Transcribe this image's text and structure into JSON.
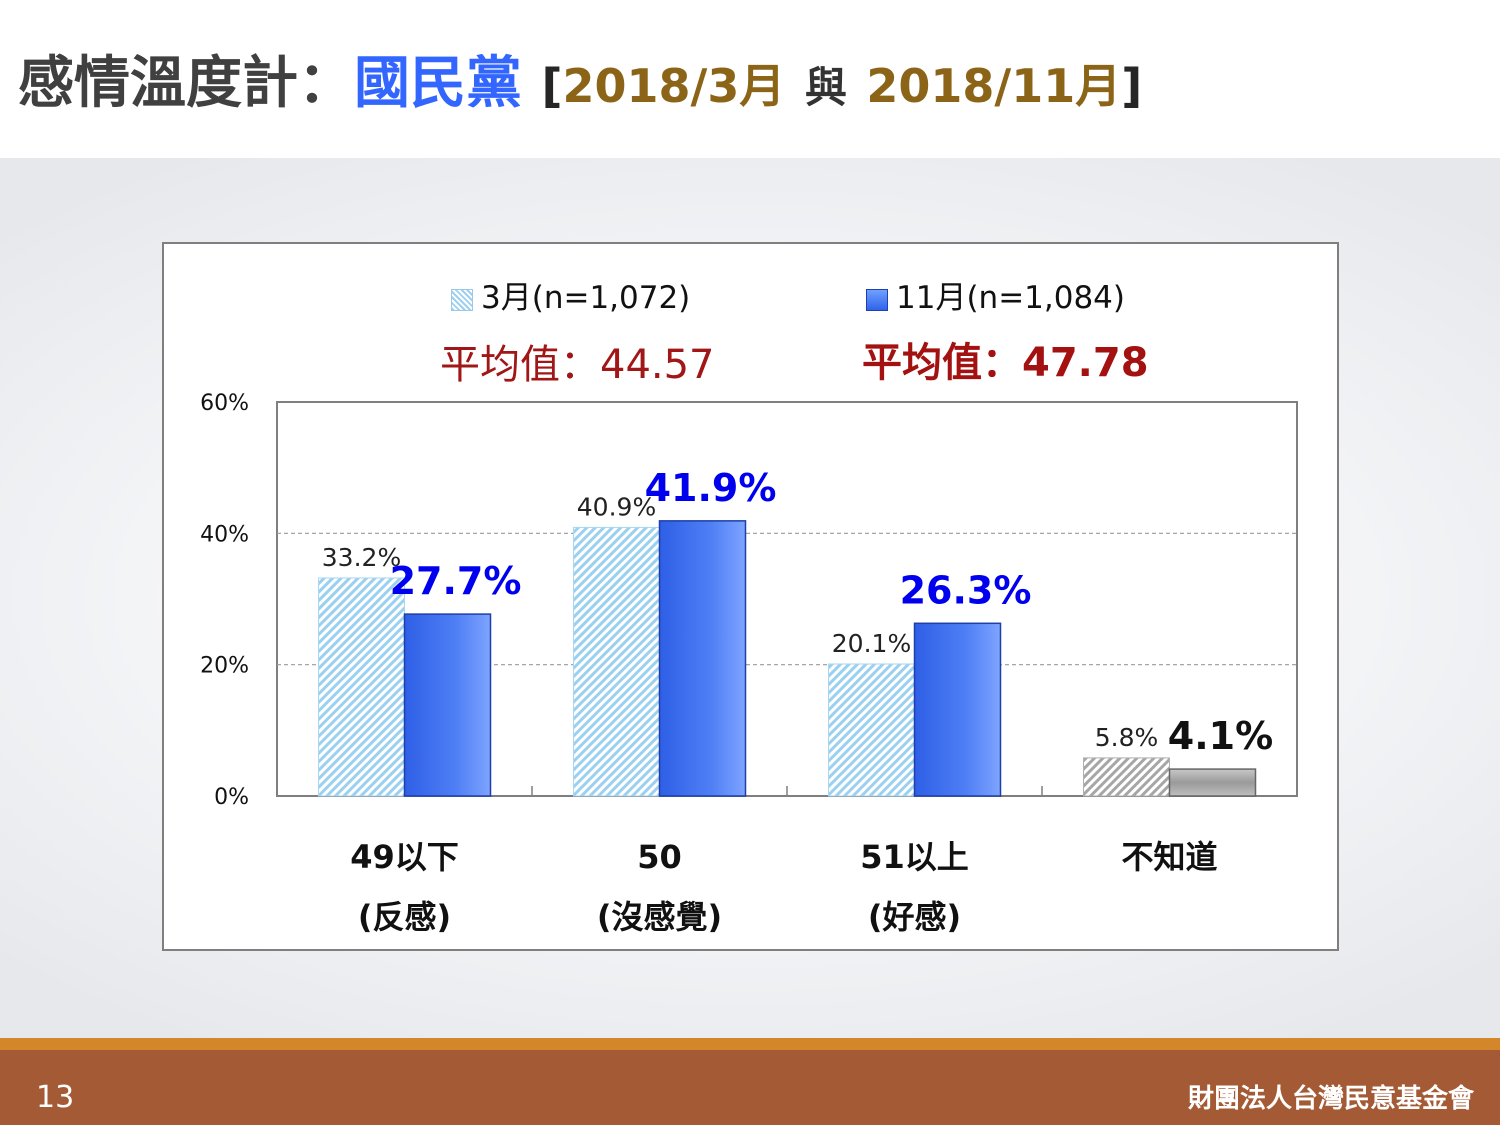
{
  "header": {
    "title_main": "感情溫度計：",
    "title_party": "國民黨",
    "title_open": "[",
    "title_date1": "2018/3月",
    "title_and": "與",
    "title_date2": "2018/11月",
    "title_close": "]"
  },
  "legend": {
    "march_label": "3月(n=1,072)",
    "nov_label": "11月(n=1,084)"
  },
  "averages": {
    "march": "平均值：44.57",
    "nov": "平均值：47.78"
  },
  "colors": {
    "march_fill": "#9cd0f0",
    "nov_fill": "#3a6ff0",
    "dont_know_fill": "#a6a6a6",
    "nov_label": "#0000ee",
    "avg_text": "#a31111",
    "footer_band": "#a45a34",
    "footer_stripe": "#d4862a"
  },
  "chart_data": {
    "type": "bar",
    "categories": [
      {
        "line1": "49以下",
        "line2": "(反感)"
      },
      {
        "line1": "50",
        "line2": "(沒感覺)"
      },
      {
        "line1": "51以上",
        "line2": "(好感)"
      },
      {
        "line1": "不知道",
        "line2": ""
      }
    ],
    "series": [
      {
        "name": "3月(n=1,072)",
        "values": [
          33.2,
          40.9,
          20.1,
          5.8
        ],
        "labels": [
          "33.2%",
          "40.9%",
          "20.1%",
          "5.8%"
        ]
      },
      {
        "name": "11月(n=1,084)",
        "values": [
          27.7,
          41.9,
          26.3,
          4.1
        ],
        "labels": [
          "27.7%",
          "41.9%",
          "26.3%",
          "4.1%"
        ]
      }
    ],
    "y_ticks": [
      "60%",
      "40%",
      "20%",
      "0%"
    ],
    "ylim": [
      0,
      60
    ],
    "grid": true,
    "legend_position": "top-center"
  },
  "footer": {
    "page_number": "13",
    "organization": "財團法人台灣民意基金會"
  }
}
